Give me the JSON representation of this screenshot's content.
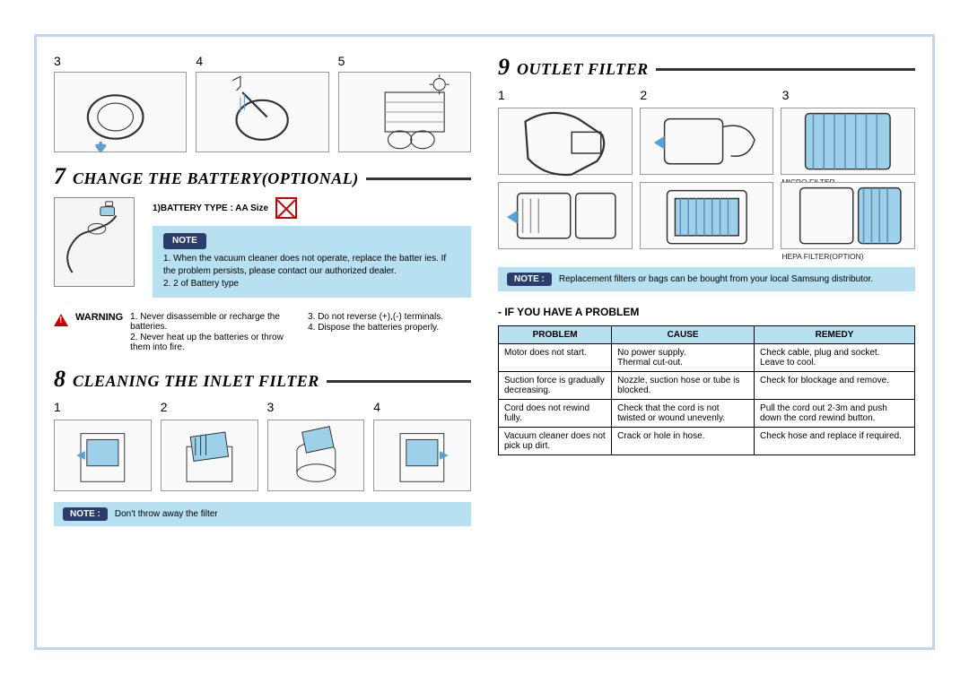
{
  "top_steps": {
    "labels": [
      "3",
      "4",
      "5"
    ]
  },
  "section7": {
    "num": "7",
    "title": "CHANGE THE BATTERY(OPTIONAL)",
    "battery_type_label": "1)BATTERY TYPE : AA Size",
    "note_label": "NOTE",
    "note_items": [
      "1. When the vacuum cleaner does not operate, replace the  batter ies. If the problem persists, please contact our authorized dealer.",
      "2. 2 of Battery type"
    ],
    "warning_label": "WARNING",
    "warning_items_left": [
      "1. Never disassemble or recharge the batteries.",
      "2. Never heat up the batteries or throw them into fire."
    ],
    "warning_items_right": [
      "3. Do not reverse (+),(-) terminals.",
      "4. Dispose the batteries properly."
    ]
  },
  "section8": {
    "num": "8",
    "title": "CLEANING THE INLET FILTER",
    "step_labels": [
      "1",
      "2",
      "3",
      "4"
    ],
    "note_badge": "NOTE :",
    "note_text": "Don't throw away the filter"
  },
  "section9": {
    "num": "9",
    "title": "OUTLET FILTER",
    "step_labels": [
      "1",
      "2",
      "3"
    ],
    "micro_label": "MICRO FILTER",
    "hepa_label": "HEPA FILTER(OPTION)",
    "note_badge": "NOTE :",
    "note_text": "Replacement filters or bags can be bought from your local Samsung distributor."
  },
  "problem_section": {
    "heading": "- IF YOU HAVE A PROBLEM",
    "columns": [
      "PROBLEM",
      "CAUSE",
      "REMEDY"
    ],
    "rows": [
      [
        "Motor does not start.",
        "No power supply.\nThermal cut-out.",
        "Check cable, plug and socket.\nLeave to cool."
      ],
      [
        "Suction force is gradually decreasing.",
        "Nozzle, suction hose or tube is blocked.",
        "Check for blockage and remove."
      ],
      [
        "Cord does not rewind fully.",
        "Check that the cord is not twisted or wound unevenly.",
        "Pull the cord out 2-3m and push down the cord rewind button."
      ],
      [
        "Vacuum cleaner does not pick up dirt.",
        "Crack or hole in hose.",
        "Check hose and replace if required."
      ]
    ]
  },
  "colors": {
    "border": "#c4d4ef",
    "callout_bg": "#b7e0f0",
    "badge_bg": "#2a3e6b",
    "warn_red": "#c00"
  }
}
